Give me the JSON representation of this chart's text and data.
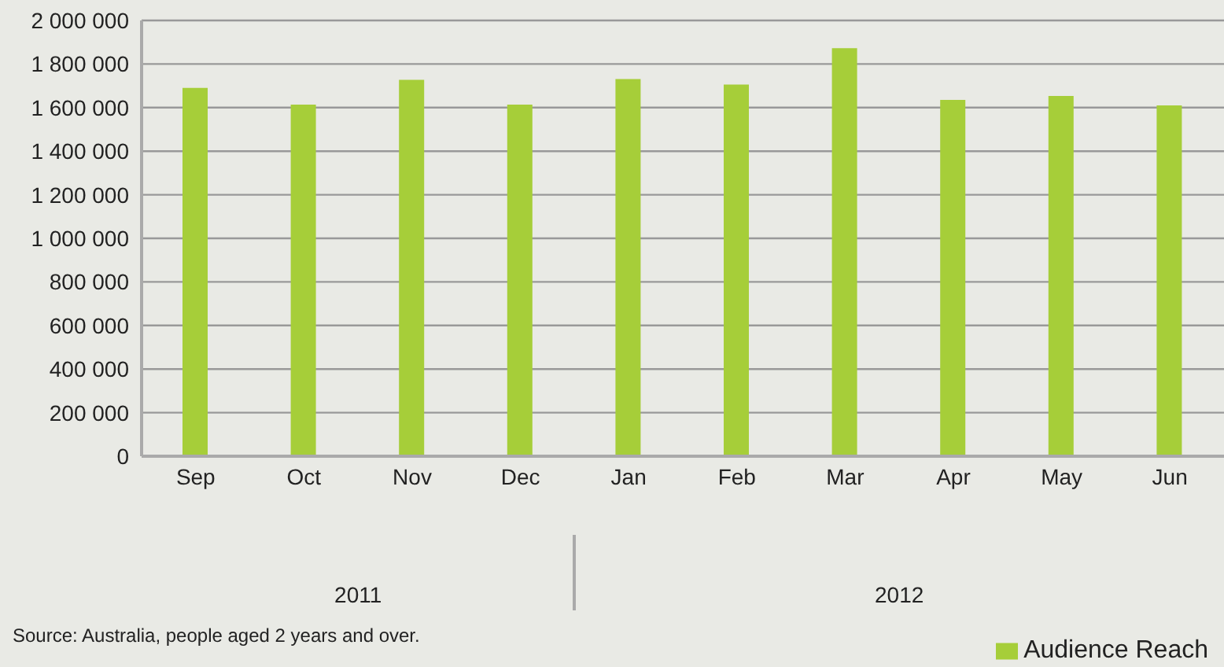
{
  "chart_data": {
    "type": "bar",
    "categories": [
      "Sep",
      "Oct",
      "Nov",
      "Dec",
      "Jan",
      "Feb",
      "Mar",
      "Apr",
      "May",
      "Jun"
    ],
    "series": [
      {
        "name": "Audience Reach",
        "color": "#a6ce39",
        "values": [
          1690000,
          1614000,
          1727000,
          1614000,
          1731000,
          1706000,
          1873000,
          1635000,
          1653000,
          1610000
        ]
      }
    ],
    "ylim": [
      0,
      2000000
    ],
    "yticks": [
      0,
      {
        "value": 200000,
        "label": "200 000"
      },
      {
        "value": 400000,
        "label": "400 000"
      },
      {
        "value": 600000,
        "label": "600 000"
      },
      {
        "value": 800000,
        "label": "800 000"
      },
      {
        "value": 1000000,
        "label": "1 000 000"
      },
      {
        "value": 1200000,
        "label": "1 200 000"
      },
      {
        "value": 1400000,
        "label": "1 400 000"
      },
      {
        "value": 1600000,
        "label": "1 600 000"
      },
      {
        "value": 1800000,
        "label": "1 800 000"
      },
      {
        "value": 2000000,
        "label": "2 000 000"
      }
    ],
    "grid": "y",
    "legend": "bottom right",
    "annotations": [
      "2011",
      "2012",
      "Source: Australia, people aged 2 years and over."
    ]
  }
}
